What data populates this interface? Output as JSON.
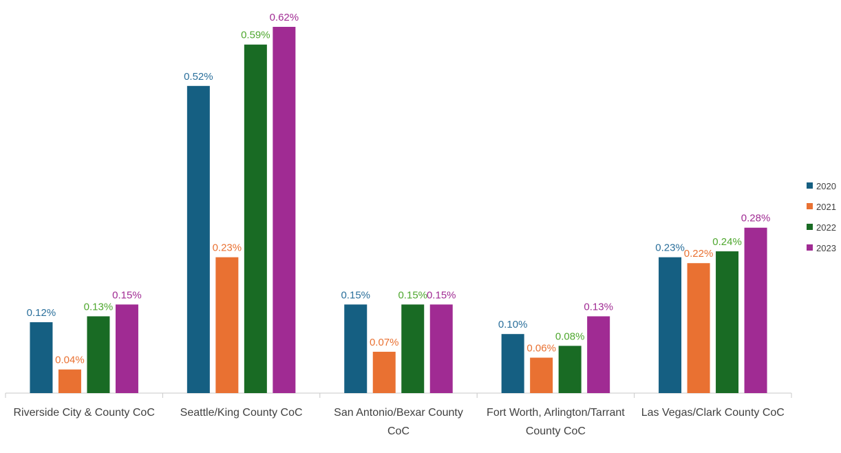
{
  "chart_data": {
    "type": "bar",
    "categories": [
      "Riverside City & County CoC",
      "Seattle/King County CoC",
      "San Antonio/Bexar County CoC",
      "Fort Worth, Arlington/Tarrant County CoC",
      "Las Vegas/Clark County CoC"
    ],
    "series": [
      {
        "name": "2020",
        "color": "#155f82",
        "label_color": "#2a6f9b",
        "values": [
          0.12,
          0.52,
          0.15,
          0.1,
          0.23
        ],
        "value_labels": [
          "0.12%",
          "0.52%",
          "0.15%",
          "0.10%",
          "0.23%"
        ]
      },
      {
        "name": "2021",
        "color": "#e97132",
        "label_color": "#e97132",
        "values": [
          0.04,
          0.23,
          0.07,
          0.06,
          0.22
        ],
        "value_labels": [
          "0.04%",
          "0.23%",
          "0.07%",
          "0.06%",
          "0.22%"
        ]
      },
      {
        "name": "2022",
        "color": "#196b24",
        "label_color": "#4ea72e",
        "values": [
          0.13,
          0.59,
          0.15,
          0.08,
          0.24
        ],
        "value_labels": [
          "0.13%",
          "0.59%",
          "0.15%",
          "0.08%",
          "0.24%"
        ]
      },
      {
        "name": "2023",
        "color": "#a02b93",
        "label_color": "#a02b93",
        "values": [
          0.15,
          0.62,
          0.15,
          0.13,
          0.28
        ],
        "value_labels": [
          "0.15%",
          "0.62%",
          "0.15%",
          "0.13%",
          "0.28%"
        ]
      }
    ],
    "legend": "right"
  }
}
